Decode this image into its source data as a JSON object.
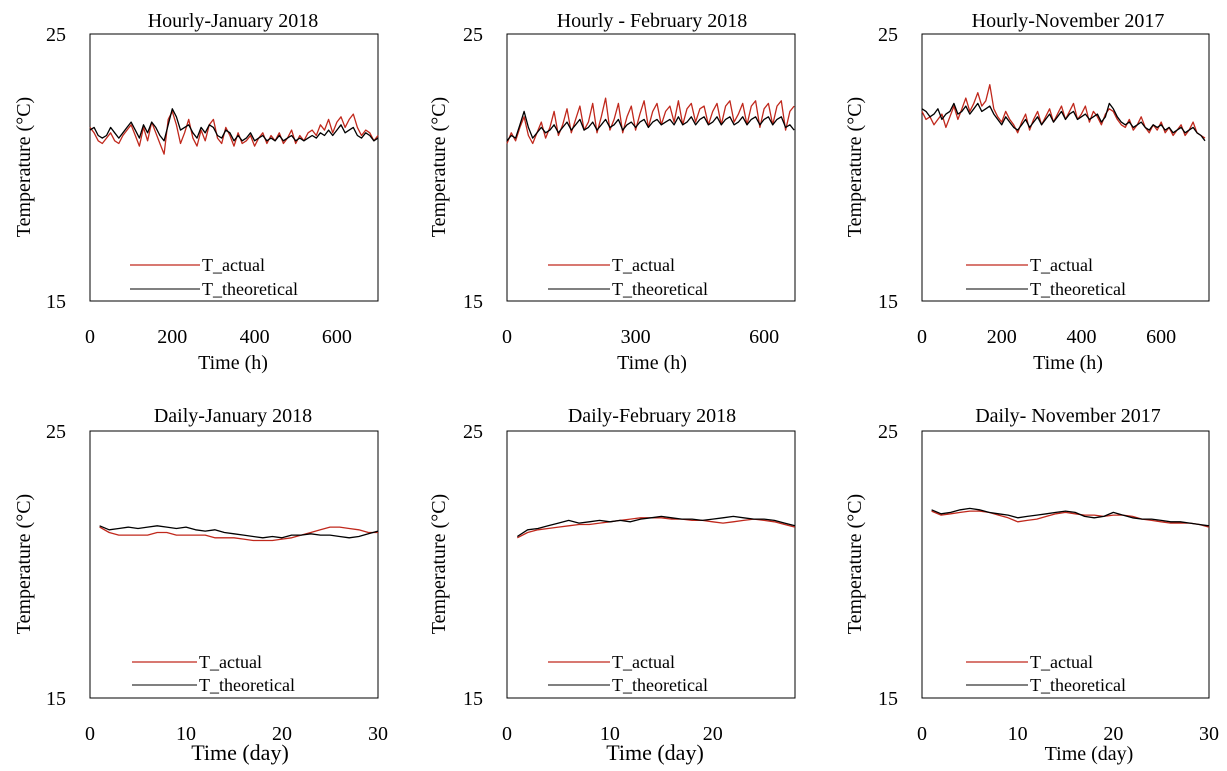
{
  "chart_data": [
    {
      "type": "line",
      "title": "Hourly-January 2018",
      "xlabel": "Time (h)",
      "ylabel": "Temperature (°C)",
      "xlim": [
        0,
        700
      ],
      "ylim": [
        15,
        25
      ],
      "xticks": [
        0,
        200,
        400,
        600
      ],
      "yticks": [
        15,
        25
      ],
      "grid": false,
      "legend": "bottom-center",
      "x_step": 10,
      "series": [
        {
          "name": "T_actual",
          "color": "#c0281c",
          "values": [
            21.5,
            21.3,
            21.0,
            20.9,
            21.1,
            21.3,
            21.0,
            20.9,
            21.2,
            21.4,
            21.6,
            21.2,
            20.8,
            21.5,
            21.0,
            21.7,
            21.3,
            20.9,
            20.5,
            21.8,
            22.1,
            21.6,
            20.9,
            21.3,
            21.8,
            21.1,
            20.8,
            21.4,
            21.0,
            21.6,
            21.8,
            21.1,
            20.9,
            21.5,
            21.2,
            20.8,
            21.3,
            20.9,
            21.0,
            21.2,
            20.8,
            21.1,
            21.3,
            20.9,
            21.2,
            21.0,
            21.3,
            20.9,
            21.1,
            21.4,
            20.9,
            21.2,
            21.0,
            21.3,
            21.4,
            21.2,
            21.6,
            21.4,
            21.8,
            21.3,
            21.7,
            21.9,
            21.5,
            21.8,
            22.0,
            21.5,
            21.2,
            21.4,
            21.3,
            21.0,
            21.2
          ]
        },
        {
          "name": "T_theoretical",
          "color": "#000000",
          "values": [
            21.4,
            21.5,
            21.2,
            21.1,
            21.2,
            21.5,
            21.3,
            21.1,
            21.3,
            21.5,
            21.7,
            21.4,
            21.1,
            21.6,
            21.3,
            21.7,
            21.5,
            21.2,
            21.0,
            21.6,
            22.2,
            21.9,
            21.4,
            21.5,
            21.6,
            21.3,
            21.1,
            21.5,
            21.3,
            21.6,
            21.5,
            21.2,
            21.1,
            21.4,
            21.3,
            21.0,
            21.2,
            21.0,
            21.1,
            21.3,
            21.0,
            21.1,
            21.2,
            21.0,
            21.1,
            21.0,
            21.2,
            21.0,
            21.1,
            21.2,
            21.0,
            21.1,
            21.0,
            21.1,
            21.2,
            21.1,
            21.3,
            21.2,
            21.4,
            21.2,
            21.4,
            21.6,
            21.3,
            21.4,
            21.5,
            21.2,
            21.1,
            21.3,
            21.2,
            21.0,
            21.1
          ]
        }
      ]
    },
    {
      "type": "line",
      "title": "Hourly - February 2018",
      "xlabel": "Time (h)",
      "ylabel": "Temperature (°C)",
      "xlim": [
        0,
        672
      ],
      "ylim": [
        15,
        25
      ],
      "xticks": [
        0,
        300,
        600
      ],
      "yticks": [
        15,
        25
      ],
      "grid": false,
      "legend": "bottom-center",
      "x_step": 10,
      "series": [
        {
          "name": "T_actual",
          "color": "#c0281c",
          "values": [
            20.9,
            21.3,
            21.0,
            21.5,
            21.9,
            21.2,
            20.9,
            21.3,
            21.7,
            21.1,
            21.5,
            22.1,
            21.2,
            21.6,
            22.2,
            21.3,
            21.8,
            22.3,
            21.4,
            21.7,
            22.4,
            21.3,
            21.9,
            22.6,
            21.4,
            21.8,
            22.4,
            21.3,
            21.9,
            22.3,
            21.4,
            22.0,
            22.5,
            21.5,
            22.1,
            22.4,
            21.6,
            22.1,
            22.3,
            21.7,
            22.5,
            21.6,
            22.2,
            22.4,
            21.7,
            22.2,
            22.3,
            21.6,
            22.1,
            22.4,
            21.6,
            22.3,
            22.5,
            21.7,
            22.0,
            22.4,
            21.6,
            22.3,
            22.5,
            21.5,
            22.2,
            22.4,
            21.6,
            22.3,
            22.5,
            21.4,
            22.1,
            22.3
          ]
        },
        {
          "name": "T_theoretical",
          "color": "#000000",
          "values": [
            21.0,
            21.2,
            21.1,
            21.6,
            22.1,
            21.5,
            21.1,
            21.3,
            21.5,
            21.3,
            21.4,
            21.6,
            21.3,
            21.5,
            21.7,
            21.4,
            21.6,
            21.8,
            21.4,
            21.5,
            21.7,
            21.4,
            21.6,
            21.8,
            21.5,
            21.6,
            21.8,
            21.4,
            21.6,
            21.7,
            21.5,
            21.7,
            21.8,
            21.5,
            21.7,
            21.8,
            21.6,
            21.7,
            21.8,
            21.6,
            21.9,
            21.6,
            21.7,
            21.9,
            21.6,
            21.8,
            21.9,
            21.6,
            21.7,
            21.9,
            21.6,
            21.8,
            21.9,
            21.6,
            21.7,
            21.9,
            21.6,
            21.8,
            21.9,
            21.6,
            21.8,
            21.9,
            21.6,
            21.8,
            21.9,
            21.5,
            21.6,
            21.4
          ]
        }
      ]
    },
    {
      "type": "line",
      "title": "Hourly-November 2017",
      "xlabel": "Time (h)",
      "ylabel": "Temperature (°C)",
      "xlim": [
        0,
        720
      ],
      "ylim": [
        15,
        25
      ],
      "xticks": [
        0,
        200,
        400,
        600
      ],
      "yticks": [
        15,
        25
      ],
      "grid": false,
      "legend": "bottom-center",
      "x_step": 10,
      "series": [
        {
          "name": "T_actual",
          "color": "#c0281c",
          "values": [
            22.1,
            21.8,
            21.9,
            21.6,
            21.8,
            22.0,
            21.5,
            21.9,
            22.3,
            21.8,
            22.2,
            22.6,
            22.1,
            22.4,
            22.8,
            22.3,
            22.5,
            23.1,
            22.2,
            21.9,
            21.7,
            22.1,
            21.8,
            21.6,
            21.3,
            21.7,
            22.0,
            21.4,
            21.8,
            22.1,
            21.6,
            21.9,
            22.2,
            21.7,
            22.0,
            22.3,
            21.8,
            22.1,
            22.4,
            21.8,
            22.0,
            22.3,
            21.7,
            22.1,
            21.9,
            21.6,
            22.0,
            22.2,
            22.1,
            21.8,
            21.6,
            21.5,
            21.8,
            21.4,
            21.6,
            21.9,
            21.5,
            21.3,
            21.6,
            21.4,
            21.7,
            21.3,
            21.5,
            21.2,
            21.4,
            21.6,
            21.2,
            21.4,
            21.7,
            21.3,
            21.2,
            21.1
          ]
        },
        {
          "name": "T_theoretical",
          "color": "#000000",
          "values": [
            22.2,
            22.1,
            21.9,
            22.0,
            22.2,
            21.8,
            22.0,
            22.1,
            22.4,
            22.0,
            22.1,
            22.3,
            22.0,
            22.2,
            22.4,
            22.1,
            22.2,
            22.3,
            22.0,
            21.8,
            21.6,
            21.9,
            21.7,
            21.5,
            21.4,
            21.6,
            21.8,
            21.5,
            21.7,
            21.9,
            21.6,
            21.8,
            22.0,
            21.7,
            21.9,
            22.1,
            21.8,
            22.0,
            22.1,
            21.8,
            21.9,
            22.0,
            21.8,
            21.9,
            22.0,
            21.7,
            21.9,
            22.4,
            22.2,
            21.9,
            21.7,
            21.6,
            21.7,
            21.5,
            21.6,
            21.7,
            21.5,
            21.4,
            21.6,
            21.5,
            21.6,
            21.4,
            21.5,
            21.3,
            21.4,
            21.5,
            21.3,
            21.4,
            21.5,
            21.3,
            21.2,
            21.0
          ]
        }
      ]
    },
    {
      "type": "line",
      "title": "Daily-January 2018",
      "xlabel": "Time (day)",
      "ylabel": "Temperature (°C)",
      "xlim": [
        0,
        30
      ],
      "ylim": [
        15,
        25
      ],
      "xticks": [
        0,
        10,
        20,
        30
      ],
      "yticks": [
        15,
        25
      ],
      "grid": false,
      "legend": "bottom-center",
      "x": [
        1,
        2,
        3,
        4,
        5,
        6,
        7,
        8,
        9,
        10,
        11,
        12,
        13,
        14,
        15,
        16,
        17,
        18,
        19,
        20,
        21,
        22,
        23,
        24,
        25,
        26,
        27,
        28,
        29,
        30
      ],
      "series": [
        {
          "name": "T_actual",
          "color": "#c0281c",
          "values": [
            21.4,
            21.2,
            21.1,
            21.1,
            21.1,
            21.1,
            21.2,
            21.2,
            21.1,
            21.1,
            21.1,
            21.1,
            21.0,
            21.0,
            21.0,
            20.95,
            20.9,
            20.9,
            20.9,
            20.95,
            21.0,
            21.1,
            21.2,
            21.3,
            21.4,
            21.4,
            21.35,
            21.3,
            21.2,
            21.2
          ]
        },
        {
          "name": "T_theoretical",
          "color": "#000000",
          "values": [
            21.45,
            21.3,
            21.35,
            21.4,
            21.35,
            21.4,
            21.45,
            21.4,
            21.35,
            21.4,
            21.3,
            21.25,
            21.3,
            21.2,
            21.15,
            21.1,
            21.05,
            21.0,
            21.05,
            21.0,
            21.1,
            21.1,
            21.15,
            21.1,
            21.1,
            21.05,
            21.0,
            21.05,
            21.15,
            21.25
          ]
        }
      ]
    },
    {
      "type": "line",
      "title": "Daily-February 2018",
      "xlabel": "Time (day)",
      "ylabel": "Temperature (°C)",
      "xlim": [
        0,
        28
      ],
      "ylim": [
        15,
        25
      ],
      "xticks": [
        0,
        10,
        20
      ],
      "yticks": [
        15,
        25
      ],
      "grid": false,
      "legend": "bottom-center",
      "x": [
        1,
        2,
        3,
        4,
        5,
        6,
        7,
        8,
        9,
        10,
        11,
        12,
        13,
        14,
        15,
        16,
        17,
        18,
        19,
        20,
        21,
        22,
        23,
        24,
        25,
        26,
        27,
        28
      ],
      "series": [
        {
          "name": "T_actual",
          "color": "#c0281c",
          "values": [
            21.0,
            21.2,
            21.3,
            21.35,
            21.4,
            21.45,
            21.5,
            21.5,
            21.55,
            21.6,
            21.65,
            21.7,
            21.75,
            21.75,
            21.75,
            21.7,
            21.7,
            21.65,
            21.65,
            21.6,
            21.55,
            21.6,
            21.65,
            21.7,
            21.65,
            21.6,
            21.5,
            21.4
          ]
        },
        {
          "name": "T_theoretical",
          "color": "#000000",
          "values": [
            21.05,
            21.3,
            21.35,
            21.45,
            21.55,
            21.65,
            21.55,
            21.6,
            21.65,
            21.6,
            21.65,
            21.6,
            21.7,
            21.75,
            21.8,
            21.75,
            21.7,
            21.7,
            21.65,
            21.7,
            21.75,
            21.8,
            21.75,
            21.7,
            21.7,
            21.65,
            21.55,
            21.45
          ]
        }
      ]
    },
    {
      "type": "line",
      "title": "Daily- November 2017",
      "xlabel": "Time (day)",
      "ylabel": "Temperature (°C)",
      "xlim": [
        0,
        30
      ],
      "ylim": [
        15,
        25
      ],
      "xticks": [
        0,
        10,
        20,
        30
      ],
      "yticks": [
        15,
        25
      ],
      "grid": false,
      "legend": "bottom-center",
      "x": [
        1,
        2,
        3,
        4,
        5,
        6,
        7,
        8,
        9,
        10,
        11,
        12,
        13,
        14,
        15,
        16,
        17,
        18,
        19,
        20,
        21,
        22,
        23,
        24,
        25,
        26,
        27,
        28,
        29,
        30
      ],
      "series": [
        {
          "name": "T_actual",
          "color": "#c0281c",
          "values": [
            22.0,
            21.85,
            21.9,
            21.95,
            22.0,
            22.0,
            21.95,
            21.85,
            21.75,
            21.6,
            21.65,
            21.7,
            21.8,
            21.9,
            21.95,
            21.9,
            21.85,
            21.85,
            21.8,
            21.85,
            21.85,
            21.8,
            21.7,
            21.65,
            21.6,
            21.55,
            21.55,
            21.55,
            21.5,
            21.4
          ]
        },
        {
          "name": "T_theoretical",
          "color": "#000000",
          "values": [
            22.05,
            21.9,
            21.95,
            22.05,
            22.1,
            22.05,
            21.95,
            21.9,
            21.85,
            21.75,
            21.8,
            21.85,
            21.9,
            21.95,
            22.0,
            21.95,
            21.8,
            21.75,
            21.8,
            21.95,
            21.85,
            21.75,
            21.7,
            21.7,
            21.65,
            21.6,
            21.6,
            21.55,
            21.5,
            21.45
          ]
        }
      ]
    }
  ]
}
